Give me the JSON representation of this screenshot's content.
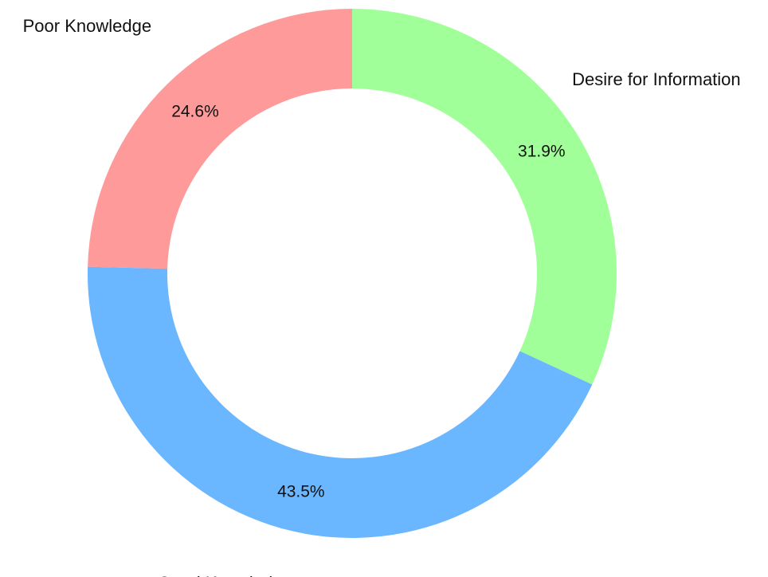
{
  "chart_data": {
    "type": "donut",
    "categories": [
      "Desire for Information",
      "Good Knowledge",
      "Poor Knowledge"
    ],
    "values": [
      31.9,
      43.5,
      24.6
    ],
    "value_labels": [
      "31.9%",
      "43.5%",
      "24.6%"
    ],
    "colors": [
      "#a0ff98",
      "#6ab6ff",
      "#ff9a9a"
    ]
  }
}
